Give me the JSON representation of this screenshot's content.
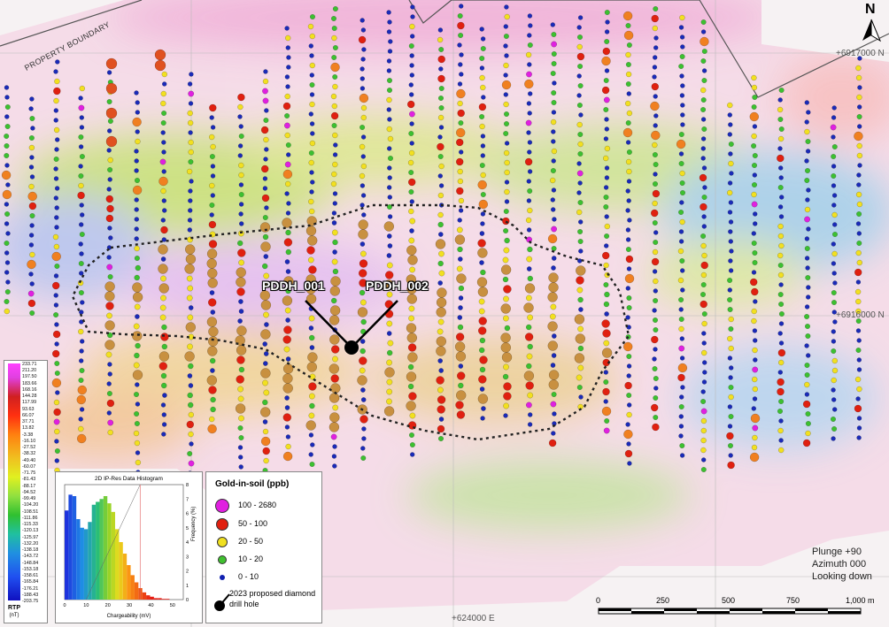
{
  "map": {
    "boundary_label": "PROPERTY BOUNDARY",
    "coords": {
      "north_6917000": "+6917000 N",
      "north_6916000": "+6916000 N",
      "east_624000": "+624000 E"
    },
    "drill_holes": [
      {
        "name": "PDDH_001"
      },
      {
        "name": "PDDH_002"
      }
    ],
    "north_arrow": "N"
  },
  "rtp_legend": {
    "title": "RTP",
    "unit": "(nT)",
    "values": [
      "233.71",
      "211.20",
      "197.50",
      "183.66",
      "168.16",
      "144.28",
      "117.99",
      "93.63",
      "66.07",
      "37.71",
      "13.82",
      "-3.38",
      "-16.10",
      "-27.52",
      "-38.32",
      "-49.40",
      "-60.07",
      "-71.75",
      "-81.43",
      "-88.17",
      "-94.52",
      "-99.49",
      "-104.20",
      "-108.51",
      "-111.86",
      "-115.33",
      "-120.13",
      "-125.97",
      "-132.20",
      "-138.18",
      "-143.72",
      "-148.84",
      "-153.18",
      "-158.61",
      "-165.84",
      "-176.21",
      "-188.43",
      "-203.75"
    ]
  },
  "histogram": {
    "title": "2D IP-Res Data Histogram",
    "xlabel": "Chargeability (mV)",
    "ylabel": "Frequency (%)",
    "xticks": [
      "0",
      "10",
      "20",
      "30",
      "40",
      "50"
    ],
    "yticks": [
      "0",
      "1",
      "2",
      "3",
      "4",
      "5",
      "6",
      "7",
      "8"
    ]
  },
  "chart_data": {
    "type": "bar",
    "title": "2D IP-Res Data Histogram",
    "xlabel": "Chargeability (mV)",
    "ylabel": "Frequency (%)",
    "bin_width": 1.8,
    "x": [
      0.9,
      2.7,
      4.5,
      6.3,
      8.1,
      9.9,
      11.7,
      13.5,
      15.3,
      17.1,
      18.9,
      20.7,
      22.5,
      24.3,
      26.1,
      27.9,
      29.7,
      31.5,
      33.3,
      35.1,
      36.9,
      38.7,
      40.5,
      42.3,
      44.1,
      45.9,
      47.7
    ],
    "values": [
      6.2,
      7.3,
      7.2,
      5.6,
      5.0,
      4.9,
      5.4,
      6.6,
      6.8,
      7.0,
      7.2,
      6.7,
      6.1,
      4.9,
      4.0,
      3.2,
      2.4,
      1.7,
      1.2,
      0.8,
      0.5,
      0.3,
      0.2,
      0.1,
      0.1,
      0.05,
      0.05
    ],
    "xlim": [
      0,
      55
    ],
    "ylim": [
      0,
      8
    ]
  },
  "gold_legend": {
    "title": "Gold-in-soil (ppb)",
    "classes": [
      {
        "label": "100 - 2680",
        "color": "#e020e0"
      },
      {
        "label": "50 - 100",
        "color": "#e02010"
      },
      {
        "label": "20 - 50",
        "color": "#f0e020"
      },
      {
        "label": "10 - 20",
        "color": "#40c030"
      },
      {
        "label": "0 - 10",
        "color": "#1020b0"
      }
    ],
    "drill_label": "2023 proposed diamond drill hole"
  },
  "view": {
    "plunge": "Plunge +90",
    "azimuth": "Azimuth 000",
    "looking": "Looking down"
  },
  "scale_bar": {
    "labels": [
      "0",
      "250",
      "500",
      "750",
      "1,000 m"
    ]
  },
  "colors": {
    "accent": "#222222"
  }
}
